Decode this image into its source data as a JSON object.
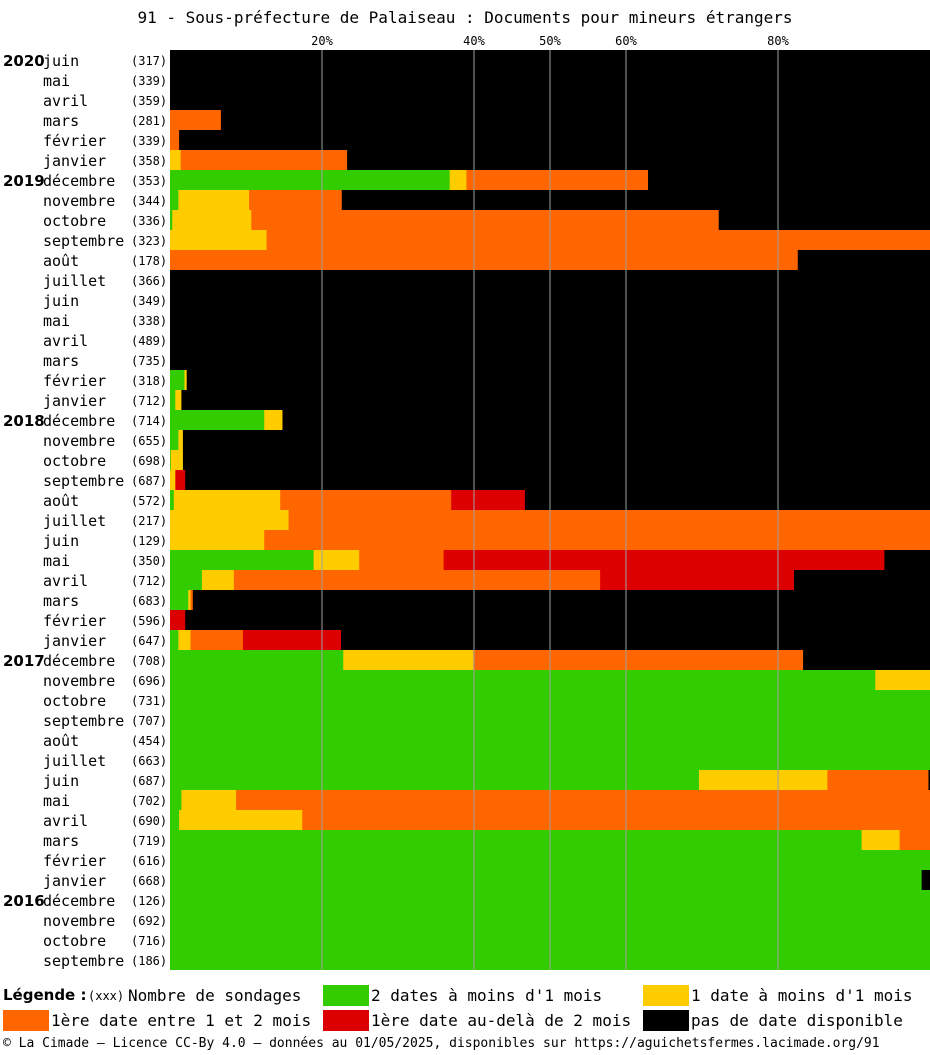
{
  "title": "91 - Sous-préfecture de Palaiseau : Documents pour mineurs étrangers",
  "colors": {
    "green": "#33cc00",
    "yellow": "#ffcc00",
    "orange": "#ff6600",
    "red": "#dd0000",
    "black": "#000000"
  },
  "chart_data": {
    "type": "bar",
    "orientation": "horizontal",
    "stacked": true,
    "percent_ticks": [
      "20%",
      "40%",
      "50%",
      "60%",
      "80%"
    ],
    "series_order": [
      "green",
      "yellow",
      "orange",
      "red",
      "black"
    ],
    "rows": [
      {
        "year": "2020",
        "month": "juin",
        "count": "(317)",
        "values": [
          0,
          0,
          0,
          0,
          100
        ]
      },
      {
        "year": "",
        "month": "mai",
        "count": "(339)",
        "values": [
          0,
          0,
          0,
          0,
          100
        ]
      },
      {
        "year": "",
        "month": "avril",
        "count": "(359)",
        "values": [
          0,
          0,
          0,
          0,
          100
        ]
      },
      {
        "year": "",
        "month": "mars",
        "count": "(281)",
        "values": [
          0,
          0,
          6.7,
          0,
          93.3
        ]
      },
      {
        "year": "",
        "month": "février",
        "count": "(339)",
        "values": [
          0,
          0,
          1.2,
          0,
          98.8
        ]
      },
      {
        "year": "",
        "month": "janvier",
        "count": "(358)",
        "values": [
          0,
          1.4,
          21.9,
          0,
          76.7
        ]
      },
      {
        "year": "2019",
        "month": "décembre",
        "count": "(353)",
        "values": [
          36.8,
          2.2,
          23.9,
          0,
          37.1
        ]
      },
      {
        "year": "",
        "month": "novembre",
        "count": "(344)",
        "values": [
          1.1,
          9.3,
          12.2,
          0,
          77.4
        ]
      },
      {
        "year": "",
        "month": "octobre",
        "count": "(336)",
        "values": [
          0.3,
          10.4,
          61.5,
          0,
          27.8
        ]
      },
      {
        "year": "",
        "month": "septembre",
        "count": "(323)",
        "values": [
          0,
          12.7,
          87.3,
          0,
          0
        ]
      },
      {
        "year": "",
        "month": "août",
        "count": "(178)",
        "values": [
          0,
          0,
          82.6,
          0,
          17.4
        ]
      },
      {
        "year": "",
        "month": "juillet",
        "count": "(366)",
        "values": [
          0,
          0,
          0,
          0,
          100
        ]
      },
      {
        "year": "",
        "month": "juin",
        "count": "(349)",
        "values": [
          0,
          0,
          0,
          0,
          100
        ]
      },
      {
        "year": "",
        "month": "mai",
        "count": "(338)",
        "values": [
          0,
          0,
          0,
          0,
          100
        ]
      },
      {
        "year": "",
        "month": "avril",
        "count": "(489)",
        "values": [
          0,
          0,
          0,
          0,
          100
        ]
      },
      {
        "year": "",
        "month": "mars",
        "count": "(735)",
        "values": [
          0,
          0,
          0,
          0,
          100
        ]
      },
      {
        "year": "",
        "month": "février",
        "count": "(318)",
        "values": [
          1.9,
          0.3,
          0,
          0,
          97.8
        ]
      },
      {
        "year": "",
        "month": "janvier",
        "count": "(712)",
        "values": [
          0.7,
          0.8,
          0,
          0,
          98.5
        ]
      },
      {
        "year": "2018",
        "month": "décembre",
        "count": "(714)",
        "values": [
          12.4,
          2.4,
          0,
          0,
          85.2
        ]
      },
      {
        "year": "",
        "month": "novembre",
        "count": "(655)",
        "values": [
          1.1,
          0.6,
          0,
          0,
          98.3
        ]
      },
      {
        "year": "",
        "month": "octobre",
        "count": "(698)",
        "values": [
          0.1,
          1.6,
          0,
          0,
          98.3
        ]
      },
      {
        "year": "",
        "month": "septembre",
        "count": "(687)",
        "values": [
          0,
          0.7,
          0,
          1.3,
          98.0
        ]
      },
      {
        "year": "",
        "month": "août",
        "count": "(572)",
        "values": [
          0.5,
          14.0,
          22.5,
          9.7,
          53.3
        ]
      },
      {
        "year": "",
        "month": "juillet",
        "count": "(217)",
        "values": [
          0,
          15.6,
          84.4,
          0,
          0
        ]
      },
      {
        "year": "",
        "month": "juin",
        "count": "(129)",
        "values": [
          0,
          12.4,
          87.6,
          0,
          0
        ]
      },
      {
        "year": "",
        "month": "mai",
        "count": "(350)",
        "values": [
          18.9,
          6.0,
          11.1,
          58.0,
          6.0
        ]
      },
      {
        "year": "",
        "month": "avril",
        "count": "(712)",
        "values": [
          4.2,
          4.2,
          48.2,
          25.5,
          17.9
        ]
      },
      {
        "year": "",
        "month": "mars",
        "count": "(683)",
        "values": [
          2.4,
          0.3,
          0.3,
          0,
          97.0
        ]
      },
      {
        "year": "",
        "month": "février",
        "count": "(596)",
        "values": [
          0,
          0,
          0,
          2.0,
          98.0
        ]
      },
      {
        "year": "",
        "month": "janvier",
        "count": "(647)",
        "values": [
          1.1,
          1.6,
          6.9,
          12.9,
          77.5
        ]
      },
      {
        "year": "2017",
        "month": "décembre",
        "count": "(708)",
        "values": [
          22.8,
          17.1,
          43.4,
          0,
          16.7
        ]
      },
      {
        "year": "",
        "month": "novembre",
        "count": "(696)",
        "values": [
          92.8,
          7.2,
          0,
          0,
          0
        ]
      },
      {
        "year": "",
        "month": "octobre",
        "count": "(731)",
        "values": [
          100,
          0,
          0,
          0,
          0
        ]
      },
      {
        "year": "",
        "month": "septembre",
        "count": "(707)",
        "values": [
          100,
          0,
          0,
          0,
          0
        ]
      },
      {
        "year": "",
        "month": "août",
        "count": "(454)",
        "values": [
          100,
          0,
          0,
          0,
          0
        ]
      },
      {
        "year": "",
        "month": "juillet",
        "count": "(663)",
        "values": [
          100,
          0,
          0,
          0,
          0
        ]
      },
      {
        "year": "",
        "month": "juin",
        "count": "(687)",
        "values": [
          69.6,
          16.9,
          13.3,
          0,
          0.2
        ]
      },
      {
        "year": "",
        "month": "mai",
        "count": "(702)",
        "values": [
          1.5,
          7.2,
          91.3,
          0,
          0
        ]
      },
      {
        "year": "",
        "month": "avril",
        "count": "(690)",
        "values": [
          1.2,
          16.2,
          82.6,
          0,
          0
        ]
      },
      {
        "year": "",
        "month": "mars",
        "count": "(719)",
        "values": [
          91.0,
          5.0,
          4.0,
          0,
          0
        ]
      },
      {
        "year": "",
        "month": "février",
        "count": "(616)",
        "values": [
          100,
          0,
          0,
          0,
          0
        ]
      },
      {
        "year": "",
        "month": "janvier",
        "count": "(668)",
        "values": [
          98.9,
          0,
          0,
          0,
          1.1
        ]
      },
      {
        "year": "2016",
        "month": "décembre",
        "count": "(126)",
        "values": [
          100,
          0,
          0,
          0,
          0
        ]
      },
      {
        "year": "",
        "month": "novembre",
        "count": "(692)",
        "values": [
          100,
          0,
          0,
          0,
          0
        ]
      },
      {
        "year": "",
        "month": "octobre",
        "count": "(716)",
        "values": [
          100,
          0,
          0,
          0,
          0
        ]
      },
      {
        "year": "",
        "month": "septembre",
        "count": "(186)",
        "values": [
          100,
          0,
          0,
          0,
          0
        ]
      }
    ]
  },
  "legend": {
    "title": "Légende :",
    "count_key": "(xxx)",
    "count_label": "Nombre de sondages",
    "green": "2 dates à moins d'1 mois",
    "yellow": "1 date à moins d'1 mois",
    "orange": "1ère date entre 1 et 2 mois",
    "red": "1ère date au-delà de 2 mois",
    "black": "pas de date disponible"
  },
  "footer": "© La Cimade — Licence CC-By 4.0 — données au 01/05/2025, disponibles sur https://aguichetsfermes.lacimade.org/91"
}
